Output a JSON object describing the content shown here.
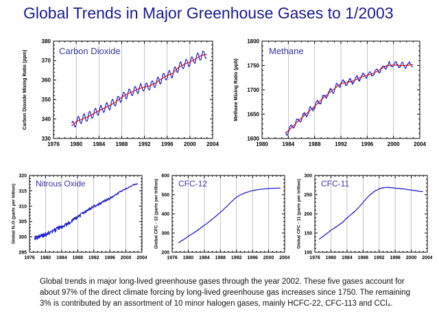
{
  "page": {
    "title": "Global Trends in Major Greenhouse Gases to 1/2003",
    "caption": "Global trends in major long-lived greenhouse gases through the year 2002.  These five gases account for about 97% of the direct climate forcing by long-lived greenhouse gas increases since 1750.  The remaining 3% is contributed by an assortment of 10 minor halogen gases, mainly HCFC-22, CFC-113 and CCl₄."
  },
  "colors": {
    "title_text": "#19198f",
    "chart_label": "#3737a3",
    "data_line": "#1c1ccc",
    "trend_line": "#cc1414",
    "grid": "#a8a8a8",
    "axis": "#000000",
    "tick_text": "#000000"
  },
  "chart_data": [
    {
      "id": "carbon-dioxide",
      "type": "line",
      "title": "Carbon Dioxide",
      "ylabel": "Carbon Dioxide Mixing Ratio (ppm)",
      "xlim": [
        1976,
        2004
      ],
      "ylim": [
        330,
        380
      ],
      "xticks": [
        1976,
        1980,
        1984,
        1988,
        1992,
        1996,
        2000,
        2004
      ],
      "yticks": [
        330,
        340,
        350,
        360,
        370,
        380
      ],
      "x_minor": 1,
      "y_minor": 2,
      "grid": "vertical-major",
      "legend": "none",
      "series": [
        {
          "name": "monthly global mean",
          "color_key": "data_line",
          "seed": 3,
          "seasonal_amp": 2.1,
          "noise": [
            0.35,
            0.35
          ],
          "points": [
            [
              1979.2,
              336.4
            ],
            [
              1980,
              338.6
            ],
            [
              1981,
              339.9
            ],
            [
              1982,
              341.1
            ],
            [
              1983,
              342.7
            ],
            [
              1984,
              344.2
            ],
            [
              1985,
              345.7
            ],
            [
              1986,
              347.1
            ],
            [
              1987,
              348.8
            ],
            [
              1988,
              351.2
            ],
            [
              1989,
              352.9
            ],
            [
              1990,
              354.2
            ],
            [
              1991,
              355.6
            ],
            [
              1992,
              356.4
            ],
            [
              1993,
              357.1
            ],
            [
              1994,
              358.6
            ],
            [
              1995,
              360.6
            ],
            [
              1996,
              362.3
            ],
            [
              1997,
              363.5
            ],
            [
              1998,
              366.5
            ],
            [
              1999,
              368.1
            ],
            [
              2000,
              369.3
            ],
            [
              2001,
              370.9
            ],
            [
              2002,
              372.6
            ],
            [
              2003,
              373.3
            ]
          ]
        },
        {
          "name": "deseasonalized trend",
          "color_key": "trend_line",
          "points": [
            [
              1979.2,
              336.4
            ],
            [
              1980,
              338.6
            ],
            [
              1981,
              339.9
            ],
            [
              1982,
              341.1
            ],
            [
              1983,
              342.7
            ],
            [
              1984,
              344.2
            ],
            [
              1985,
              345.7
            ],
            [
              1986,
              347.1
            ],
            [
              1987,
              348.8
            ],
            [
              1988,
              351.2
            ],
            [
              1989,
              352.9
            ],
            [
              1990,
              354.2
            ],
            [
              1991,
              355.6
            ],
            [
              1992,
              356.4
            ],
            [
              1993,
              357.1
            ],
            [
              1994,
              358.6
            ],
            [
              1995,
              360.6
            ],
            [
              1996,
              362.3
            ],
            [
              1997,
              363.5
            ],
            [
              1998,
              366.5
            ],
            [
              1999,
              368.1
            ],
            [
              2000,
              369.3
            ],
            [
              2001,
              370.9
            ],
            [
              2002,
              372.6
            ],
            [
              2003,
              373.3
            ]
          ]
        }
      ]
    },
    {
      "id": "methane",
      "type": "line",
      "title": "Methane",
      "ylabel": "Methane Mixing Ratio (ppb)",
      "xlim": [
        1980,
        2004
      ],
      "ylim": [
        1600,
        1800
      ],
      "xticks": [
        1980,
        1984,
        1988,
        1992,
        1996,
        2000,
        2004
      ],
      "yticks": [
        1600,
        1650,
        1700,
        1750,
        1800
      ],
      "x_minor": 1,
      "y_minor": 10,
      "grid": "vertical-major",
      "legend": "none",
      "series": [
        {
          "name": "monthly global mean",
          "color_key": "data_line",
          "seed": 4,
          "seasonal_amp": 5.5,
          "noise": [
            2.6,
            2.6
          ],
          "points": [
            [
              1983.6,
              1611
            ],
            [
              1984,
              1616
            ],
            [
              1985,
              1629
            ],
            [
              1986,
              1642
            ],
            [
              1987,
              1654
            ],
            [
              1988,
              1666
            ],
            [
              1989,
              1679
            ],
            [
              1990,
              1691
            ],
            [
              1991,
              1702
            ],
            [
              1992,
              1713
            ],
            [
              1993,
              1715
            ],
            [
              1994,
              1719
            ],
            [
              1995,
              1726
            ],
            [
              1996,
              1730
            ],
            [
              1997,
              1734
            ],
            [
              1998,
              1742
            ],
            [
              1999,
              1750
            ],
            [
              2000,
              1751
            ],
            [
              2001,
              1750
            ],
            [
              2002,
              1750
            ],
            [
              2003,
              1752
            ]
          ]
        },
        {
          "name": "deseasonalized trend",
          "color_key": "trend_line",
          "points": [
            [
              1983.6,
              1611
            ],
            [
              1984,
              1616
            ],
            [
              1985,
              1629
            ],
            [
              1986,
              1642
            ],
            [
              1987,
              1654
            ],
            [
              1988,
              1666
            ],
            [
              1989,
              1679
            ],
            [
              1990,
              1691
            ],
            [
              1991,
              1702
            ],
            [
              1992,
              1713
            ],
            [
              1993,
              1715
            ],
            [
              1994,
              1719
            ],
            [
              1995,
              1726
            ],
            [
              1996,
              1730
            ],
            [
              1997,
              1734
            ],
            [
              1998,
              1742
            ],
            [
              1999,
              1750
            ],
            [
              2000,
              1751
            ],
            [
              2001,
              1750
            ],
            [
              2002,
              1750
            ],
            [
              2003,
              1752
            ]
          ]
        }
      ]
    },
    {
      "id": "nitrous-oxide",
      "type": "line",
      "title": "Nitrous Oxide",
      "ylabel": "Global N₂O (parts per billion)",
      "xlim": [
        1976,
        2004
      ],
      "ylim": [
        295,
        320
      ],
      "xticks": [
        1976,
        1980,
        1984,
        1988,
        1992,
        1996,
        2000,
        2004
      ],
      "yticks": [
        295,
        300,
        305,
        310,
        315,
        320
      ],
      "x_minor": 1,
      "y_minor": 1,
      "grid": "vertical-major",
      "legend": "none",
      "series": [
        {
          "name": "global mean",
          "color_key": "data_line",
          "seed": 9,
          "seasonal_amp": 0,
          "noise": [
            0.85,
            0.15
          ],
          "points": [
            [
              1977.3,
              299.6
            ],
            [
              1978,
              299.8
            ],
            [
              1979,
              300.3
            ],
            [
              1980,
              300.9
            ],
            [
              1981,
              301.3
            ],
            [
              1982,
              301.9
            ],
            [
              1983,
              302.7
            ],
            [
              1984,
              303.2
            ],
            [
              1985,
              303.9
            ],
            [
              1986,
              304.8
            ],
            [
              1987,
              305.6
            ],
            [
              1988,
              306.4
            ],
            [
              1989,
              307.4
            ],
            [
              1990,
              308.3
            ],
            [
              1991,
              309.2
            ],
            [
              1992,
              309.9
            ],
            [
              1993,
              310.4
            ],
            [
              1994,
              311.2
            ],
            [
              1995,
              311.9
            ],
            [
              1996,
              312.5
            ],
            [
              1997,
              313.3
            ],
            [
              1998,
              314.2
            ],
            [
              1999,
              315.0
            ],
            [
              2000,
              315.7
            ],
            [
              2001,
              316.3
            ],
            [
              2002,
              317.0
            ],
            [
              2003,
              317.3
            ]
          ]
        }
      ]
    },
    {
      "id": "cfc-12",
      "type": "line",
      "title": "CFC-12",
      "ylabel": "Global CFC - 12 (parts per trillion)",
      "xlim": [
        1976,
        2004
      ],
      "ylim": [
        200,
        600
      ],
      "xticks": [
        1976,
        1980,
        1984,
        1988,
        1992,
        1996,
        2000,
        2004
      ],
      "yticks": [
        200,
        300,
        400,
        500,
        600
      ],
      "x_minor": 1,
      "y_minor": 20,
      "grid": "vertical-major",
      "legend": "none",
      "series": [
        {
          "name": "global mean",
          "color_key": "data_line",
          "seed": 5,
          "seasonal_amp": 0,
          "noise": [
            1.6,
            0.6
          ],
          "points": [
            [
              1977.6,
              248
            ],
            [
              1978,
              256
            ],
            [
              1979,
              268
            ],
            [
              1980,
              283
            ],
            [
              1981,
              296
            ],
            [
              1982,
              310
            ],
            [
              1983,
              325
            ],
            [
              1984,
              340
            ],
            [
              1985,
              356
            ],
            [
              1986,
              372
            ],
            [
              1987,
              390
            ],
            [
              1988,
              408
            ],
            [
              1989,
              427
            ],
            [
              1990,
              447
            ],
            [
              1991,
              468
            ],
            [
              1992,
              487
            ],
            [
              1993,
              499
            ],
            [
              1994,
              508
            ],
            [
              1995,
              515
            ],
            [
              1996,
              521
            ],
            [
              1997,
              525
            ],
            [
              1998,
              528
            ],
            [
              1999,
              530
            ],
            [
              2000,
              532
            ],
            [
              2001,
              533
            ],
            [
              2002,
              534
            ],
            [
              2003,
              534
            ]
          ]
        }
      ]
    },
    {
      "id": "cfc-11",
      "type": "line",
      "title": "CFC-11",
      "ylabel": "Global CFC - 11 (parts per trillion)",
      "xlim": [
        1976,
        2004
      ],
      "ylim": [
        100,
        300
      ],
      "xticks": [
        1976,
        1980,
        1984,
        1988,
        1992,
        1996,
        2000,
        2004
      ],
      "yticks": [
        100,
        150,
        200,
        250,
        300
      ],
      "x_minor": 1,
      "y_minor": 10,
      "grid": "vertical-major",
      "legend": "none",
      "series": [
        {
          "name": "global mean",
          "color_key": "data_line",
          "seed": 8,
          "seasonal_amp": 0,
          "noise": [
            0.9,
            0.45
          ],
          "points": [
            [
              1977.1,
              134
            ],
            [
              1978,
              141
            ],
            [
              1979,
              149
            ],
            [
              1980,
              157
            ],
            [
              1981,
              164
            ],
            [
              1982,
              171
            ],
            [
              1983,
              179
            ],
            [
              1984,
              189
            ],
            [
              1985,
              198
            ],
            [
              1986,
              207
            ],
            [
              1987,
              218
            ],
            [
              1988,
              230
            ],
            [
              1989,
              242
            ],
            [
              1990,
              252
            ],
            [
              1991,
              260
            ],
            [
              1992,
              265
            ],
            [
              1993,
              268
            ],
            [
              1994,
              269
            ],
            [
              1995,
              268
            ],
            [
              1996,
              267
            ],
            [
              1997,
              266
            ],
            [
              1998,
              265
            ],
            [
              1999,
              263.5
            ],
            [
              2000,
              262
            ],
            [
              2001,
              260.5
            ],
            [
              2002,
              259
            ],
            [
              2003,
              257.5
            ]
          ]
        }
      ]
    }
  ]
}
